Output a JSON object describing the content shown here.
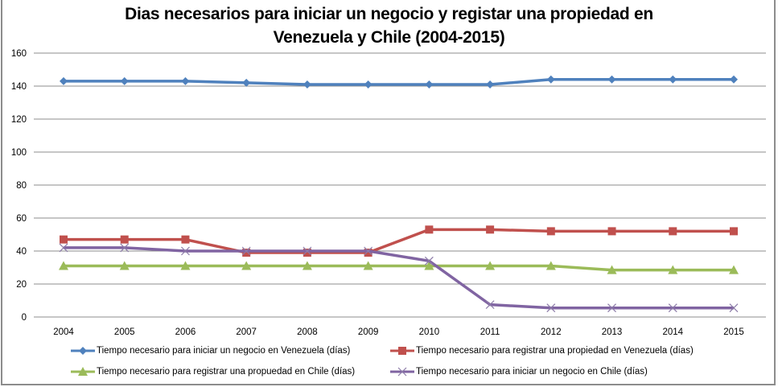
{
  "chart_data": {
    "type": "line",
    "title": "Dias necesarios para iniciar un negocio y registar una propiedad en Venezuela y Chile (2004-2015)",
    "title_lines": [
      "Dias necesarios para iniciar un negocio y registar una propiedad en",
      "Venezuela y Chile (2004-2015)"
    ],
    "xlabel": "",
    "ylabel": "",
    "x": [
      "2004",
      "2005",
      "2006",
      "2007",
      "2008",
      "2009",
      "2010",
      "2011",
      "2012",
      "2013",
      "2014",
      "2015"
    ],
    "ylim": [
      0,
      160
    ],
    "yticks": [
      0,
      20,
      40,
      60,
      80,
      100,
      120,
      140,
      160
    ],
    "grid": true,
    "legend_position": "bottom",
    "series": [
      {
        "name": "Tiempo necesario para iniciar un negocio en Venezuela (días)",
        "color": "#4f81bd",
        "marker": "diamond",
        "values": [
          143,
          143,
          143,
          142,
          141,
          141,
          141,
          141,
          144,
          144,
          144,
          144
        ]
      },
      {
        "name": "Tiempo necesario para registrar una propiedad en Venezuela (días)",
        "color": "#c0504d",
        "marker": "square",
        "values": [
          47,
          47,
          47,
          39,
          39,
          39,
          53,
          53,
          52,
          52,
          52,
          52
        ]
      },
      {
        "name": "Tiempo necesario para registrar una propuedad en Chile (días)",
        "color": "#9bbb59",
        "marker": "triangle",
        "values": [
          31,
          31,
          31,
          31,
          31,
          31,
          31,
          31,
          31,
          28.5,
          28.5,
          28.5
        ]
      },
      {
        "name": "Tiempo necesario para iniciar un negocio en Chile (días)",
        "color": "#8064a2",
        "marker": "x",
        "values": [
          42,
          42,
          40,
          40,
          40,
          40,
          34,
          7.5,
          5.5,
          5.5,
          5.5,
          5.5
        ]
      }
    ]
  }
}
